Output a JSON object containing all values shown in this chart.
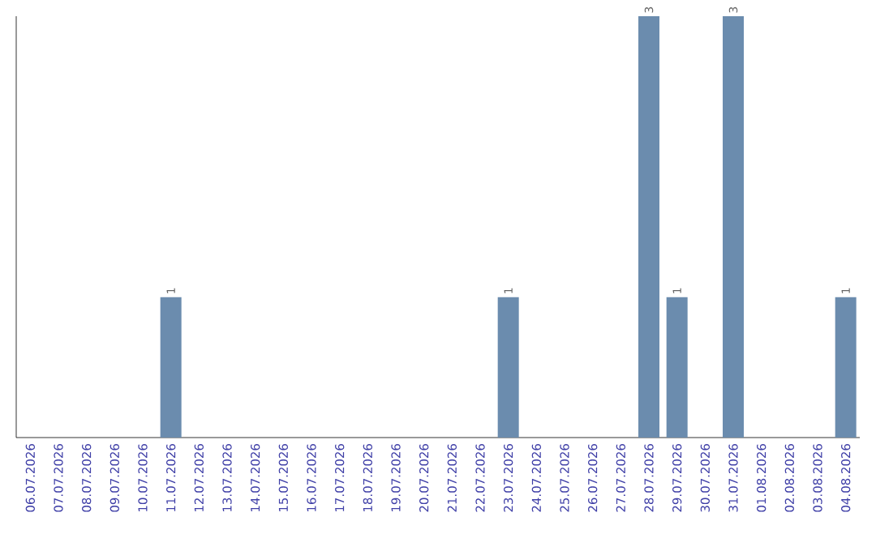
{
  "chart_data": {
    "type": "bar",
    "categories": [
      "06.07.2026",
      "07.07.2026",
      "08.07.2026",
      "09.07.2026",
      "10.07.2026",
      "11.07.2026",
      "12.07.2026",
      "13.07.2026",
      "14.07.2026",
      "15.07.2026",
      "16.07.2026",
      "17.07.2026",
      "18.07.2026",
      "19.07.2026",
      "20.07.2026",
      "21.07.2026",
      "22.07.2026",
      "23.07.2026",
      "24.07.2026",
      "25.07.2026",
      "26.07.2026",
      "27.07.2026",
      "28.07.2026",
      "29.07.2026",
      "30.07.2026",
      "31.07.2026",
      "01.08.2026",
      "02.08.2026",
      "03.08.2026",
      "04.08.2026"
    ],
    "values": [
      0,
      0,
      0,
      0,
      0,
      1,
      0,
      0,
      0,
      0,
      0,
      0,
      0,
      0,
      0,
      0,
      0,
      1,
      0,
      0,
      0,
      0,
      3,
      1,
      0,
      3,
      0,
      0,
      0,
      1
    ],
    "value_labels": [
      null,
      null,
      null,
      null,
      null,
      "1",
      null,
      null,
      null,
      null,
      null,
      null,
      null,
      null,
      null,
      null,
      null,
      "1",
      null,
      null,
      null,
      null,
      "3",
      "1",
      null,
      "3",
      null,
      null,
      null,
      "1"
    ],
    "color": "#6b8cae"
  }
}
